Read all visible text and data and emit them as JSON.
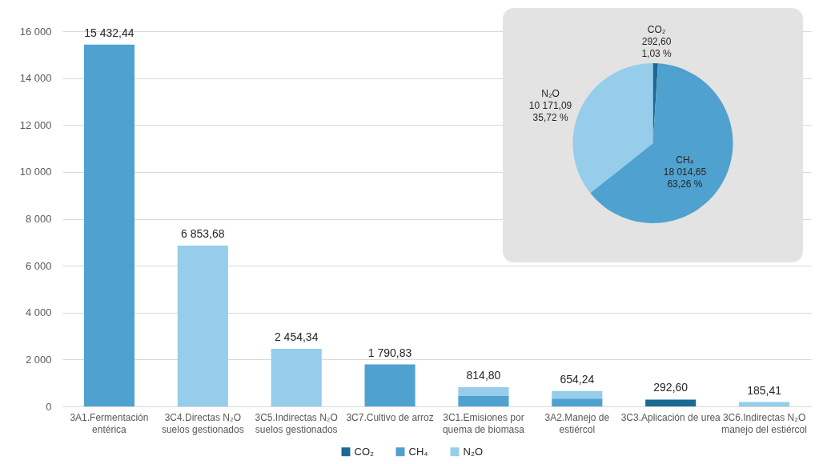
{
  "chart_data": [
    {
      "type": "bar",
      "stacked": true,
      "categories": [
        "3A1.Fermentación entérica",
        "3C4.Directas N₂O suelos gestionados",
        "3C5.Indirectas N₂O suelos gestionados",
        "3C7.Cultivo de arroz",
        "3C1.Emisiones por quema de biomasa",
        "3A2.Manejo de estiércol",
        "3C3.Aplicación de urea",
        "3C6.Indirectas N₂O manejo del estiércol"
      ],
      "series": [
        {
          "name": "CO₂",
          "color": "#1a6a93",
          "values": [
            0,
            0,
            0,
            0,
            0,
            0,
            292.6,
            0
          ]
        },
        {
          "name": "CH₄",
          "color": "#4fa1cf",
          "values": [
            15432.44,
            0,
            0,
            1790.83,
            460,
            331.38,
            0,
            0
          ]
        },
        {
          "name": "N₂O",
          "color": "#95cdea",
          "values": [
            0,
            6853.68,
            2454.34,
            0,
            354.8,
            322.86,
            0,
            185.41
          ]
        }
      ],
      "totals": [
        "15 432,44",
        "6 853,68",
        "2 454,34",
        "1 790,83",
        "814,80",
        "654,24",
        "292,60",
        "185,41"
      ],
      "ylim": [
        0,
        16000
      ],
      "yticks": [
        0,
        {
          "value": 2000,
          "label": "2 000"
        },
        {
          "value": 4000,
          "label": "4 000"
        },
        {
          "value": 6000,
          "label": "6 000"
        },
        {
          "value": 8000,
          "label": "8 000"
        },
        {
          "value": 10000,
          "label": "10 000"
        },
        {
          "value": 12000,
          "label": "12 000"
        },
        {
          "value": 14000,
          "label": "14 000"
        },
        {
          "value": 16000,
          "label": "16 000"
        }
      ],
      "grid": "y",
      "legend": "bottom"
    },
    {
      "type": "pie",
      "categories": [
        "CO₂",
        "CH₄",
        "N₂O"
      ],
      "values": [
        292.6,
        18014.65,
        10171.09
      ],
      "colors": [
        "#1a6a93",
        "#4fa1cf",
        "#95cdea"
      ],
      "value_labels": [
        "292,60\n1,03 %",
        "18 014,65\n63,26 %",
        "10 171,09\n35,72 %"
      ]
    }
  ]
}
